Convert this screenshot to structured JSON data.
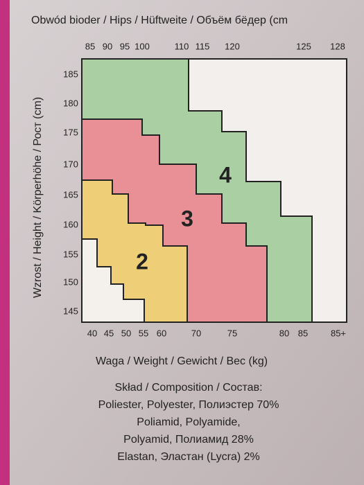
{
  "header": {
    "title": "Obwód bioder / Hips / Hüftweite / Объём бёдер (cm"
  },
  "hips_ticks": [
    "85",
    "90",
    "95",
    "100",
    "110",
    "115",
    "120",
    "125",
    "128"
  ],
  "height_label": "Wzrost / Height / Körperhöhe / Рост (cm)",
  "height_ticks": [
    "185",
    "180",
    "175",
    "170",
    "165",
    "160",
    "155",
    "150",
    "145"
  ],
  "weight_ticks": [
    "40",
    "45",
    "50",
    "55",
    "60",
    "70",
    "75",
    "80",
    "85",
    "85+"
  ],
  "weight_label": "Waga / Weight / Gewicht / Вес (kg)",
  "zones": [
    "2",
    "3",
    "4"
  ],
  "composition": [
    "Skład / Composition / Состав:",
    "Poliester, Polyester, Полиэстер 70%",
    "Poliamid, Polyamide,",
    "Polyamid, Полиамид 28%",
    "Elastan, Эластан (Lycra) 2%"
  ]
}
